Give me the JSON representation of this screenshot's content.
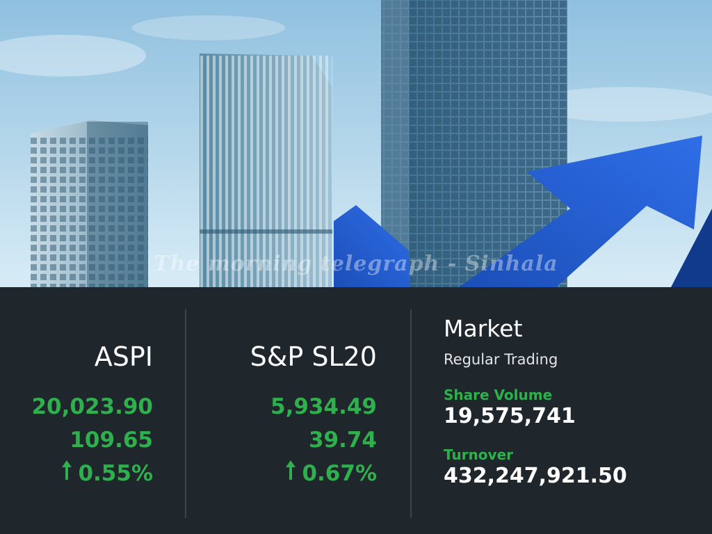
{
  "watermark": "The morning telegraph - Sinhala",
  "indices": [
    {
      "name": "ASPI",
      "value": "20,023.90",
      "change": "109.65",
      "percent": "0.55%",
      "direction": "up"
    },
    {
      "name": "S&P SL20",
      "value": "5,934.49",
      "change": "39.74",
      "percent": "0.67%",
      "direction": "up"
    }
  ],
  "market": {
    "title": "Market",
    "session": "Regular Trading",
    "share_volume_label": "Share Volume",
    "share_volume": "19,575,741",
    "turnover_label": "Turnover",
    "turnover": "432,247,921.50"
  },
  "colors": {
    "positive": "#2eb04d",
    "panel_bg": "#1f272d",
    "arrow_blue": "#1f5fd6"
  },
  "icons": {
    "up_arrow": "arrow-up-icon"
  }
}
